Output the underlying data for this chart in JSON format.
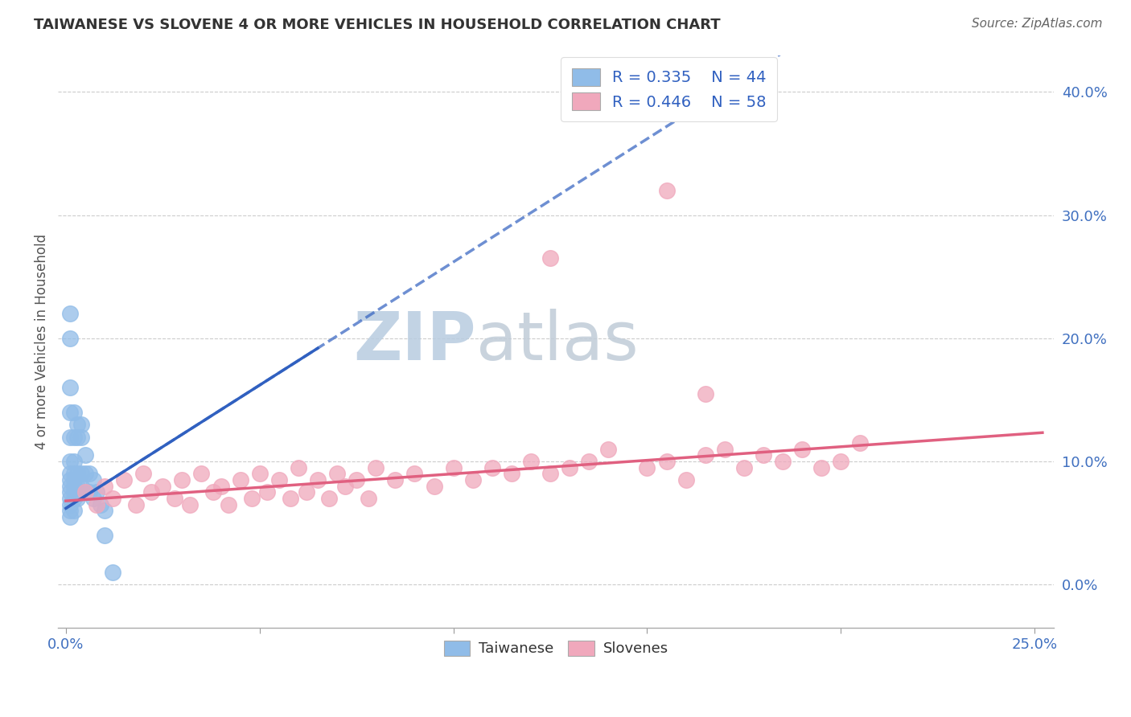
{
  "title": "TAIWANESE VS SLOVENE 4 OR MORE VEHICLES IN HOUSEHOLD CORRELATION CHART",
  "source": "Source: ZipAtlas.com",
  "ylabel": "4 or more Vehicles in Household",
  "xlim": [
    -0.002,
    0.255
  ],
  "ylim": [
    -0.035,
    0.43
  ],
  "xtick_positions": [
    0.0,
    0.05,
    0.1,
    0.15,
    0.2,
    0.25
  ],
  "xtick_labels_show": {
    "0.0": "0.0%",
    "0.25": "25.0%"
  },
  "yticks_right": [
    0.0,
    0.1,
    0.2,
    0.3,
    0.4
  ],
  "ytick_right_labels": [
    "0.0%",
    "10.0%",
    "20.0%",
    "30.0%",
    "40.0%"
  ],
  "background_color": "#ffffff",
  "grid_color": "#cccccc",
  "watermark_zip": "ZIP",
  "watermark_atlas": "atlas",
  "watermark_color_zip": "#b8cfe8",
  "watermark_color_atlas": "#c8d8e8",
  "taiwanese_color": "#90bce8",
  "slovene_color": "#f0a8bc",
  "taiwanese_line_color": "#3060c0",
  "slovene_line_color": "#e06080",
  "title_color": "#333333",
  "source_color": "#666666",
  "tick_color": "#4070c0",
  "ylabel_color": "#555555",
  "tw_x": [
    0.001,
    0.001,
    0.001,
    0.001,
    0.001,
    0.001,
    0.001,
    0.001,
    0.001,
    0.001,
    0.001,
    0.001,
    0.001,
    0.001,
    0.002,
    0.002,
    0.002,
    0.002,
    0.002,
    0.002,
    0.002,
    0.002,
    0.002,
    0.003,
    0.003,
    0.003,
    0.003,
    0.003,
    0.004,
    0.004,
    0.004,
    0.004,
    0.005,
    0.005,
    0.005,
    0.006,
    0.006,
    0.007,
    0.007,
    0.008,
    0.009,
    0.01,
    0.01,
    0.012
  ],
  "tw_y": [
    0.22,
    0.2,
    0.16,
    0.14,
    0.12,
    0.1,
    0.09,
    0.085,
    0.08,
    0.075,
    0.07,
    0.065,
    0.06,
    0.055,
    0.14,
    0.12,
    0.1,
    0.09,
    0.085,
    0.08,
    0.075,
    0.07,
    0.06,
    0.13,
    0.12,
    0.09,
    0.08,
    0.07,
    0.13,
    0.12,
    0.09,
    0.08,
    0.105,
    0.09,
    0.075,
    0.09,
    0.075,
    0.085,
    0.07,
    0.075,
    0.065,
    0.06,
    0.04,
    0.01
  ],
  "sl_x": [
    0.005,
    0.008,
    0.01,
    0.012,
    0.015,
    0.018,
    0.02,
    0.022,
    0.025,
    0.028,
    0.03,
    0.032,
    0.035,
    0.038,
    0.04,
    0.042,
    0.045,
    0.048,
    0.05,
    0.052,
    0.055,
    0.058,
    0.06,
    0.062,
    0.065,
    0.068,
    0.07,
    0.072,
    0.075,
    0.078,
    0.08,
    0.085,
    0.09,
    0.095,
    0.1,
    0.105,
    0.11,
    0.115,
    0.12,
    0.125,
    0.13,
    0.135,
    0.14,
    0.15,
    0.155,
    0.16,
    0.165,
    0.17,
    0.175,
    0.18,
    0.185,
    0.19,
    0.195,
    0.2,
    0.205,
    0.155,
    0.125,
    0.165
  ],
  "sl_y": [
    0.075,
    0.065,
    0.08,
    0.07,
    0.085,
    0.065,
    0.09,
    0.075,
    0.08,
    0.07,
    0.085,
    0.065,
    0.09,
    0.075,
    0.08,
    0.065,
    0.085,
    0.07,
    0.09,
    0.075,
    0.085,
    0.07,
    0.095,
    0.075,
    0.085,
    0.07,
    0.09,
    0.08,
    0.085,
    0.07,
    0.095,
    0.085,
    0.09,
    0.08,
    0.095,
    0.085,
    0.095,
    0.09,
    0.1,
    0.09,
    0.095,
    0.1,
    0.11,
    0.095,
    0.1,
    0.085,
    0.105,
    0.11,
    0.095,
    0.105,
    0.1,
    0.11,
    0.095,
    0.1,
    0.115,
    0.32,
    0.265,
    0.155
  ],
  "tw_trendline_x": [
    0.0,
    0.25
  ],
  "tw_trendline_params": [
    2.0,
    0.062
  ],
  "sl_trendline_x": [
    0.0,
    0.25
  ],
  "sl_trendline_params": [
    0.22,
    0.068
  ]
}
